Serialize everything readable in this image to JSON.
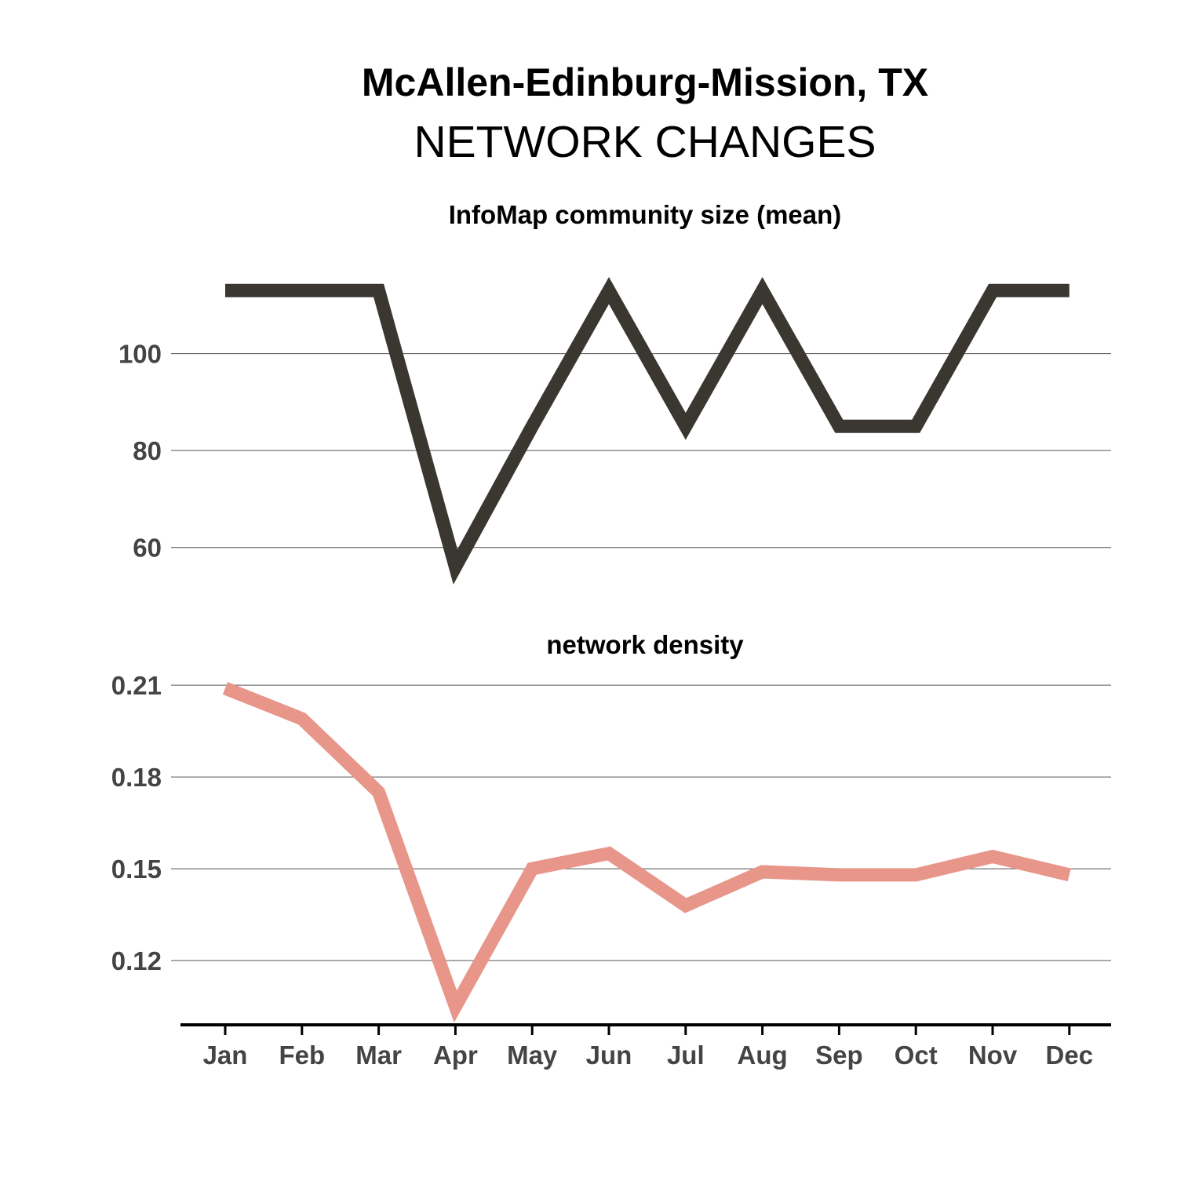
{
  "header": {
    "title": "McAllen-Edinburg-Mission, TX",
    "subtitle": "NETWORK CHANGES"
  },
  "chart_data": [
    {
      "type": "line",
      "title": "InfoMap community size (mean)",
      "xlabel": "",
      "ylabel": "",
      "categories": [
        "Jan",
        "Feb",
        "Mar",
        "Apr",
        "May",
        "Jun",
        "Jul",
        "Aug",
        "Sep",
        "Oct",
        "Nov",
        "Dec"
      ],
      "series": [
        {
          "values": [
            113,
            113,
            113,
            56,
            85,
            113,
            85,
            113,
            85,
            85,
            113,
            113
          ],
          "color": "#3a3630"
        }
      ],
      "yticks": [
        60,
        80,
        100
      ],
      "ytick_labels": [
        "60",
        "80",
        "100"
      ],
      "ylim": [
        47,
        126
      ],
      "grid": true
    },
    {
      "type": "line",
      "title": "network density",
      "xlabel": "",
      "ylabel": "",
      "categories": [
        "Jan",
        "Feb",
        "Mar",
        "Apr",
        "May",
        "Jun",
        "Jul",
        "Aug",
        "Sep",
        "Oct",
        "Nov",
        "Dec"
      ],
      "series": [
        {
          "values": [
            0.209,
            0.199,
            0.175,
            0.105,
            0.15,
            0.155,
            0.138,
            0.149,
            0.148,
            0.148,
            0.154,
            0.148
          ],
          "color": "#e8958a"
        }
      ],
      "yticks": [
        0.12,
        0.15,
        0.18,
        0.21
      ],
      "ytick_labels": [
        "0.12",
        "0.15",
        "0.18",
        "0.21"
      ],
      "ylim": [
        0.099,
        0.219
      ],
      "grid": true
    }
  ],
  "xaxis": {
    "tick_labels": [
      "Jan",
      "Feb",
      "Mar",
      "Apr",
      "May",
      "Jun",
      "Jul",
      "Aug",
      "Sep",
      "Oct",
      "Nov",
      "Dec"
    ]
  }
}
